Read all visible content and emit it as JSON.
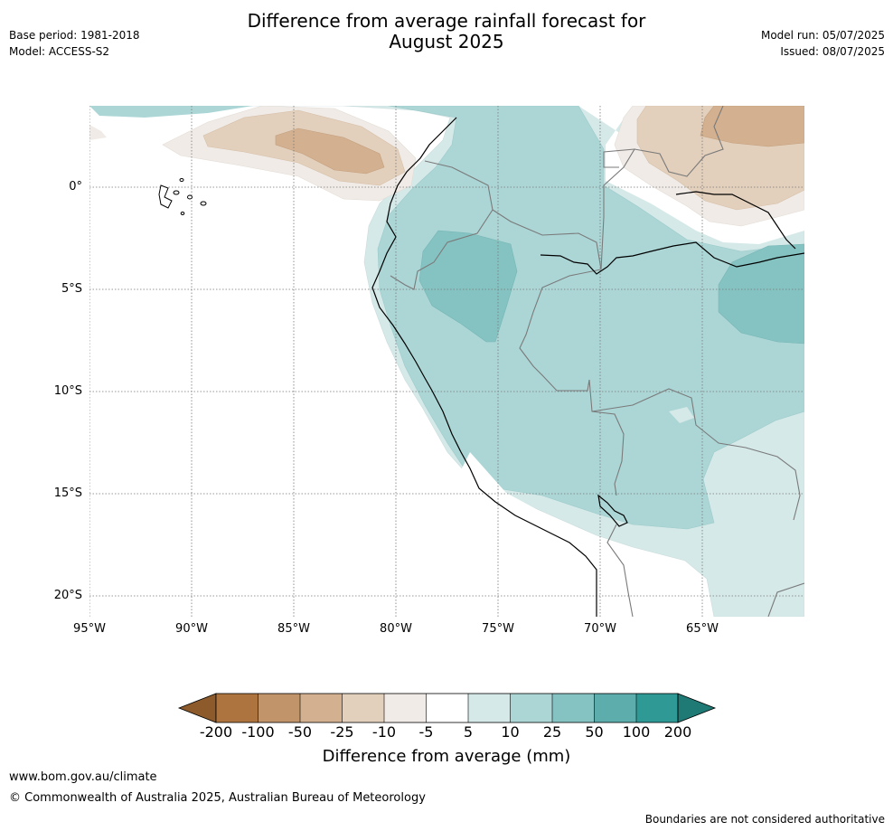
{
  "title": {
    "line1": "Difference from average rainfall forecast for",
    "line2": "August 2025"
  },
  "meta_left": {
    "base_period": "Base period: 1981-2018",
    "model": "Model: ACCESS-S2"
  },
  "meta_right": {
    "model_run": "Model run: 05/07/2025",
    "issued": "Issued: 08/07/2025"
  },
  "map": {
    "region": "western South America and eastern Pacific",
    "lat_labels": [
      "0°",
      "5°S",
      "10°S",
      "15°S",
      "20°S"
    ],
    "lon_labels": [
      "95°W",
      "90°W",
      "85°W",
      "80°W",
      "75°W",
      "70°W",
      "65°W"
    ],
    "lat_values": [
      0,
      -5,
      -10,
      -15,
      -20
    ],
    "lon_values": [
      -95,
      -90,
      -85,
      -80,
      -75,
      -70,
      -65
    ],
    "extent": {
      "lon_min": -95,
      "lon_max": -60,
      "lat_min": -21,
      "lat_max": 4
    },
    "gridlines": "dotted"
  },
  "colorbar": {
    "ticks": [
      "-200",
      "-100",
      "-50",
      "-25",
      "-10",
      "-5",
      "5",
      "10",
      "25",
      "50",
      "100",
      "200"
    ],
    "colors": [
      "#8c5a2b",
      "#ae7440",
      "#c1946a",
      "#d3b08f",
      "#e3d0bc",
      "#f0ebe6",
      "#ffffff",
      "#d5e9e8",
      "#acd6d6",
      "#85c3c2",
      "#5cadac",
      "#2e9995",
      "#1f7a76"
    ],
    "label": "Difference from average (mm)"
  },
  "footer": {
    "url": "www.bom.gov.au/climate",
    "copyright": "© Commonwealth of Australia 2025, Australian Bureau of Meteorology",
    "disclaimer": "Boundaries are not considered authoritative"
  }
}
